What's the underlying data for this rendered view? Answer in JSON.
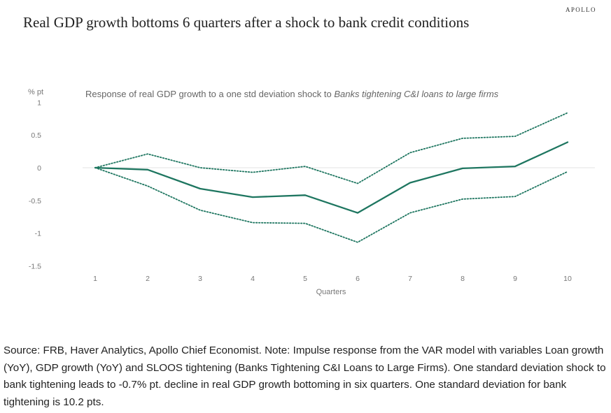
{
  "brand": "APOLLO",
  "title": "Real GDP growth bottoms 6 quarters after a shock to bank credit conditions",
  "source_note": "Source: FRB, Haver Analytics, Apollo Chief Economist. Note: Impulse response from the VAR model with variables Loan growth (YoY), GDP growth (YoY) and SLOOS tightening (Banks Tightening C&I Loans to Large Firms). One standard deviation shock to bank tightening leads to -0.7% pt. decline in real GDP growth bottoming in six quarters. One standard deviation for bank tightening is 10.2 pts.",
  "chart_data": {
    "type": "line",
    "subtitle_prefix": "Response of real GDP growth to a one std deviation shock to ",
    "subtitle_emphasis": "Banks tightening C&I loans to large firms",
    "xlabel": "Quarters",
    "ylabel": "% pt",
    "x": [
      1,
      2,
      3,
      4,
      5,
      6,
      7,
      8,
      9,
      10
    ],
    "x_tick_labels": [
      "1",
      "2",
      "3",
      "4",
      "5",
      "6",
      "7",
      "8",
      "9",
      "10"
    ],
    "y_tick_labels": [
      "1",
      "0.5",
      "0",
      "-0.5",
      "-1",
      "-1.5"
    ],
    "y_ticks": [
      1,
      0.5,
      0,
      -0.5,
      -1,
      -1.5
    ],
    "ylim": [
      -1.5,
      1
    ],
    "series": [
      {
        "role": "estimate",
        "style": "solid",
        "color": "#1e7660",
        "values": [
          0,
          -0.03,
          -0.32,
          -0.45,
          -0.42,
          -0.69,
          -0.23,
          -0.01,
          0.02,
          0.39
        ]
      },
      {
        "role": "upper band",
        "style": "dotted",
        "color": "#1e7660",
        "values": [
          0,
          0.21,
          0.0,
          -0.07,
          0.02,
          -0.24,
          0.23,
          0.45,
          0.48,
          0.84
        ]
      },
      {
        "role": "lower band",
        "style": "dotted",
        "color": "#1e7660",
        "values": [
          0,
          -0.28,
          -0.65,
          -0.84,
          -0.85,
          -1.14,
          -0.69,
          -0.48,
          -0.44,
          -0.06
        ]
      }
    ],
    "grid": false,
    "zero_line": true,
    "legend": "none"
  }
}
